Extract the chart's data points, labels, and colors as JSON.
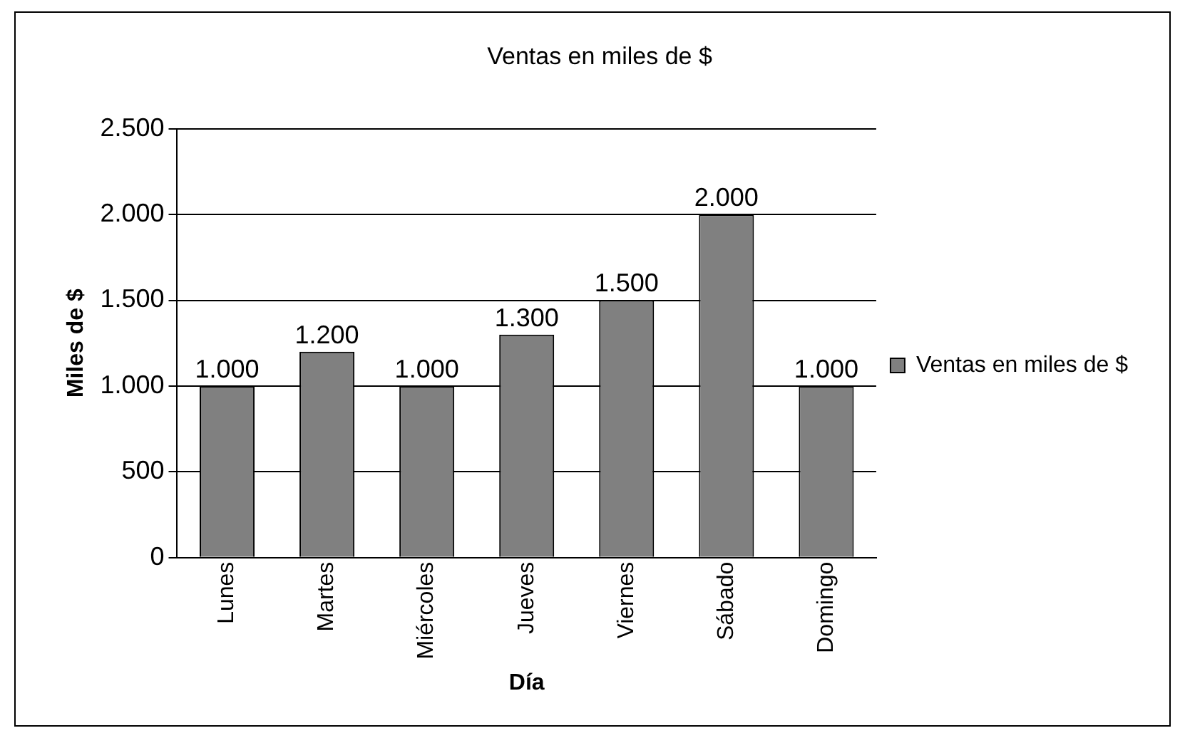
{
  "chart_data": {
    "type": "bar",
    "title": "Ventas en miles de $",
    "xlabel": "Día",
    "ylabel": "Miles de $",
    "categories": [
      "Lunes",
      "Martes",
      "Miércoles",
      "Jueves",
      "Viernes",
      "Sábado",
      "Domingo"
    ],
    "series": [
      {
        "name": "Ventas en miles de $",
        "color": "#808080",
        "values": [
          1000,
          1200,
          1000,
          1300,
          1500,
          2000,
          1000
        ],
        "value_labels": [
          "1.000",
          "1.200",
          "1.000",
          "1.300",
          "1.500",
          "2.000",
          "1.000"
        ]
      }
    ],
    "ylim": [
      0,
      2500
    ],
    "yticks": [
      {
        "value": 0,
        "label": "0"
      },
      {
        "value": 500,
        "label": "500"
      },
      {
        "value": 1000,
        "label": "1.000"
      },
      {
        "value": 1500,
        "label": "1.500"
      },
      {
        "value": 2000,
        "label": "2.000"
      },
      {
        "value": 2500,
        "label": "2.500"
      }
    ],
    "grid": "y",
    "legend": "right"
  }
}
